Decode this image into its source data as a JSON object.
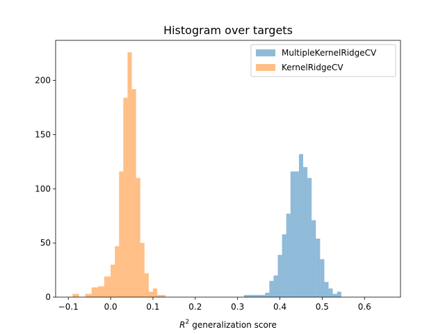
{
  "chart_data": {
    "type": "bar",
    "title": "Histogram over targets",
    "xlabel": "generalization score",
    "xlabel_prefix": "R",
    "xlabel_superscript": "2",
    "ylabel": "",
    "xlim": [
      -0.13,
      0.685
    ],
    "ylim": [
      0,
      237
    ],
    "xticks": [
      -0.1,
      0.0,
      0.1,
      0.2,
      0.3,
      0.4,
      0.5,
      0.6
    ],
    "xtick_labels": [
      "−0.1",
      "0.0",
      "0.1",
      "0.2",
      "0.3",
      "0.4",
      "0.5",
      "0.6"
    ],
    "yticks": [
      0,
      50,
      100,
      150,
      200
    ],
    "ytick_labels": [
      "0",
      "50",
      "100",
      "150",
      "200"
    ],
    "grid": false,
    "legend_position": "top-right",
    "series": [
      {
        "name": "MultipleKernelRidgeCV",
        "color": "#1f77b4",
        "alpha": 0.5,
        "bins": [
          {
            "x0": 0.315,
            "x1": 0.325,
            "count": 2
          },
          {
            "x0": 0.325,
            "x1": 0.335,
            "count": 2
          },
          {
            "x0": 0.335,
            "x1": 0.345,
            "count": 2
          },
          {
            "x0": 0.345,
            "x1": 0.355,
            "count": 2
          },
          {
            "x0": 0.355,
            "x1": 0.365,
            "count": 2
          },
          {
            "x0": 0.365,
            "x1": 0.375,
            "count": 4
          },
          {
            "x0": 0.375,
            "x1": 0.385,
            "count": 15
          },
          {
            "x0": 0.385,
            "x1": 0.395,
            "count": 20
          },
          {
            "x0": 0.395,
            "x1": 0.405,
            "count": 39
          },
          {
            "x0": 0.405,
            "x1": 0.415,
            "count": 58
          },
          {
            "x0": 0.415,
            "x1": 0.425,
            "count": 77
          },
          {
            "x0": 0.425,
            "x1": 0.435,
            "count": 116
          },
          {
            "x0": 0.435,
            "x1": 0.445,
            "count": 116
          },
          {
            "x0": 0.445,
            "x1": 0.455,
            "count": 132
          },
          {
            "x0": 0.455,
            "x1": 0.465,
            "count": 120
          },
          {
            "x0": 0.465,
            "x1": 0.475,
            "count": 110
          },
          {
            "x0": 0.475,
            "x1": 0.485,
            "count": 71
          },
          {
            "x0": 0.485,
            "x1": 0.495,
            "count": 54
          },
          {
            "x0": 0.495,
            "x1": 0.505,
            "count": 35
          },
          {
            "x0": 0.505,
            "x1": 0.515,
            "count": 14
          },
          {
            "x0": 0.515,
            "x1": 0.525,
            "count": 8
          },
          {
            "x0": 0.525,
            "x1": 0.535,
            "count": 3
          },
          {
            "x0": 0.535,
            "x1": 0.545,
            "count": 5
          }
        ]
      },
      {
        "name": "KernelRidgeCV",
        "color": "#ff7f0e",
        "alpha": 0.5,
        "bins": [
          {
            "x0": -0.09,
            "x1": -0.075,
            "count": 3
          },
          {
            "x0": -0.06,
            "x1": -0.045,
            "count": 3
          },
          {
            "x0": -0.045,
            "x1": -0.03,
            "count": 9
          },
          {
            "x0": -0.03,
            "x1": -0.015,
            "count": 10
          },
          {
            "x0": -0.015,
            "x1": 0.0,
            "count": 19
          },
          {
            "x0": 0.0,
            "x1": 0.01,
            "count": 30
          },
          {
            "x0": 0.01,
            "x1": 0.02,
            "count": 47
          },
          {
            "x0": 0.02,
            "x1": 0.03,
            "count": 116
          },
          {
            "x0": 0.03,
            "x1": 0.04,
            "count": 184
          },
          {
            "x0": 0.04,
            "x1": 0.05,
            "count": 226
          },
          {
            "x0": 0.05,
            "x1": 0.06,
            "count": 192
          },
          {
            "x0": 0.06,
            "x1": 0.07,
            "count": 110
          },
          {
            "x0": 0.07,
            "x1": 0.08,
            "count": 50
          },
          {
            "x0": 0.08,
            "x1": 0.09,
            "count": 22
          },
          {
            "x0": 0.09,
            "x1": 0.1,
            "count": 5
          },
          {
            "x0": 0.1,
            "x1": 0.11,
            "count": 8
          },
          {
            "x0": 0.11,
            "x1": 0.12,
            "count": 2
          },
          {
            "x0": 0.12,
            "x1": 0.13,
            "count": 2
          }
        ]
      }
    ]
  }
}
